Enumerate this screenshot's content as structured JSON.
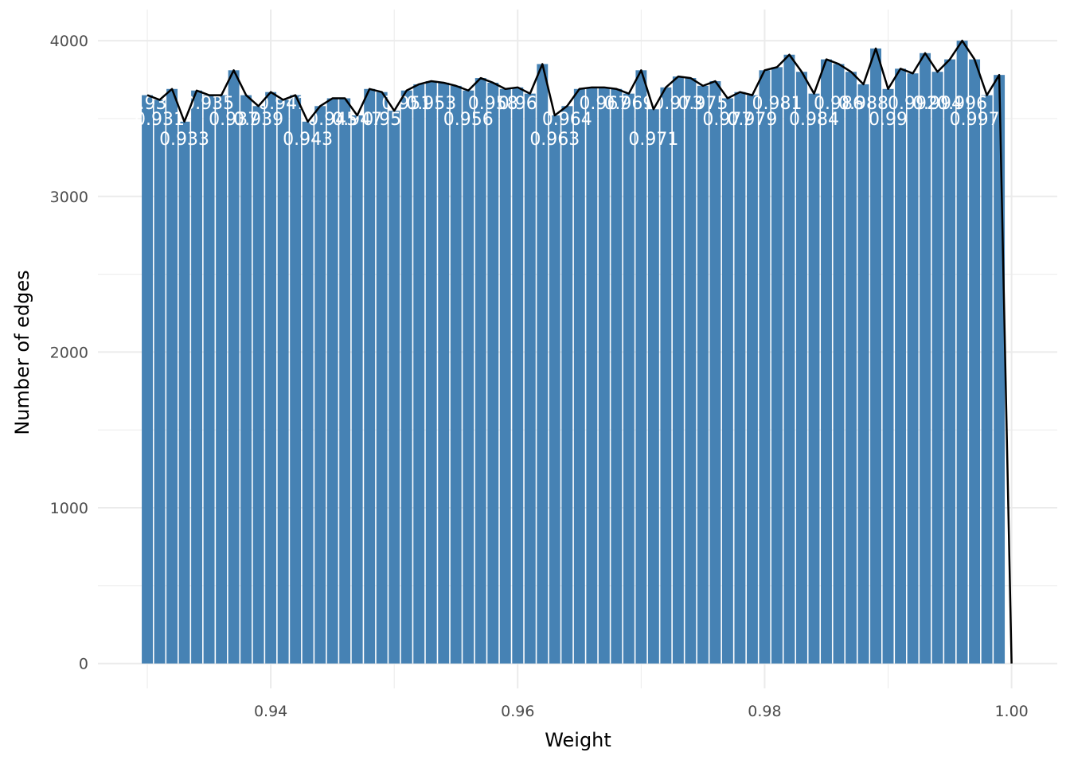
{
  "chart_data": {
    "type": "bar",
    "xlabel": "Weight",
    "ylabel": "Number of edges",
    "xlim": [
      0.926,
      1.0037
    ],
    "ylim": [
      -160,
      4200
    ],
    "x_ticks": [
      0.94,
      0.96,
      0.98,
      1.0
    ],
    "x_tick_labels": [
      "0.94",
      "0.96",
      "0.98",
      "1.00"
    ],
    "y_ticks": [
      0,
      1000,
      2000,
      3000,
      4000
    ],
    "y_tick_labels": [
      "0",
      "1000",
      "2000",
      "3000",
      "4000"
    ],
    "y_minor_ticks": [
      500,
      1500,
      2500,
      3500
    ],
    "x_minor_ticks": [
      0.93,
      0.95,
      0.97,
      0.99
    ],
    "grid": true,
    "bin_width": 0.001,
    "bar_color": "#4682b4",
    "line_color": "#000000",
    "label_color": "#ffffff",
    "series": [
      {
        "name": "",
        "x": [
          0.93,
          0.931,
          0.932,
          0.933,
          0.934,
          0.935,
          0.936,
          0.937,
          0.938,
          0.939,
          0.94,
          0.941,
          0.942,
          0.943,
          0.944,
          0.945,
          0.946,
          0.947,
          0.948,
          0.949,
          0.95,
          0.951,
          0.952,
          0.953,
          0.954,
          0.955,
          0.956,
          0.957,
          0.958,
          0.959,
          0.96,
          0.961,
          0.962,
          0.963,
          0.964,
          0.965,
          0.966,
          0.967,
          0.968,
          0.969,
          0.97,
          0.971,
          0.972,
          0.973,
          0.974,
          0.975,
          0.976,
          0.977,
          0.978,
          0.979,
          0.98,
          0.981,
          0.982,
          0.983,
          0.984,
          0.985,
          0.986,
          0.987,
          0.988,
          0.989,
          0.99,
          0.991,
          0.992,
          0.993,
          0.994,
          0.995,
          0.996,
          0.997,
          0.998,
          0.999,
          1.0
        ],
        "values": [
          3650,
          3620,
          3690,
          3480,
          3680,
          3650,
          3650,
          3810,
          3650,
          3580,
          3670,
          3620,
          3650,
          3480,
          3580,
          3630,
          3630,
          3520,
          3690,
          3670,
          3550,
          3680,
          3720,
          3740,
          3730,
          3710,
          3680,
          3760,
          3730,
          3690,
          3700,
          3660,
          3850,
          3520,
          3580,
          3690,
          3700,
          3700,
          3690,
          3660,
          3810,
          3560,
          3700,
          3770,
          3760,
          3710,
          3740,
          3630,
          3670,
          3650,
          3810,
          3830,
          3910,
          3800,
          3660,
          3880,
          3850,
          3800,
          3720,
          3950,
          3690,
          3820,
          3790,
          3920,
          3800,
          3880,
          4000,
          3880,
          3650,
          3780,
          0
        ]
      }
    ],
    "data_labels": [
      {
        "x": 0.93,
        "text": "0.93",
        "row": 0
      },
      {
        "x": 0.931,
        "text": "0.931",
        "row": 1
      },
      {
        "x": 0.933,
        "text": "0.933",
        "row": 2
      },
      {
        "x": 0.935,
        "text": "0.935",
        "row": 0
      },
      {
        "x": 0.937,
        "text": "0.937",
        "row": 1
      },
      {
        "x": 0.939,
        "text": "0.939",
        "row": 1
      },
      {
        "x": 0.941,
        "text": "0.941",
        "row": 0
      },
      {
        "x": 0.943,
        "text": "0.943",
        "row": 2
      },
      {
        "x": 0.945,
        "text": "0.945",
        "row": 1
      },
      {
        "x": 0.947,
        "text": "0.947",
        "row": 1
      },
      {
        "x": 0.949,
        "text": "0.95",
        "row": 1
      },
      {
        "x": 0.951,
        "text": "0.951",
        "row": 0
      },
      {
        "x": 0.953,
        "text": "0.953",
        "row": 0
      },
      {
        "x": 0.956,
        "text": "0.956",
        "row": 1
      },
      {
        "x": 0.958,
        "text": "0.958",
        "row": 0
      },
      {
        "x": 0.96,
        "text": "0.96",
        "row": 0
      },
      {
        "x": 0.963,
        "text": "0.963",
        "row": 2
      },
      {
        "x": 0.964,
        "text": "0.964",
        "row": 1
      },
      {
        "x": 0.967,
        "text": "0.967",
        "row": 0
      },
      {
        "x": 0.969,
        "text": "0.969",
        "row": 0
      },
      {
        "x": 0.971,
        "text": "0.971",
        "row": 2
      },
      {
        "x": 0.973,
        "text": "0.973",
        "row": 0
      },
      {
        "x": 0.975,
        "text": "0.975",
        "row": 0
      },
      {
        "x": 0.977,
        "text": "0.977",
        "row": 1
      },
      {
        "x": 0.979,
        "text": "0.979",
        "row": 1
      },
      {
        "x": 0.981,
        "text": "0.981",
        "row": 0
      },
      {
        "x": 0.984,
        "text": "0.984",
        "row": 1
      },
      {
        "x": 0.986,
        "text": "0.986",
        "row": 0
      },
      {
        "x": 0.988,
        "text": "0.988",
        "row": 0
      },
      {
        "x": 0.99,
        "text": "0.99",
        "row": 1
      },
      {
        "x": 0.992,
        "text": "0.992",
        "row": 0
      },
      {
        "x": 0.994,
        "text": "0.994",
        "row": 0
      },
      {
        "x": 0.996,
        "text": "0.996",
        "row": 0
      },
      {
        "x": 0.997,
        "text": "0.997",
        "row": 1
      }
    ]
  }
}
